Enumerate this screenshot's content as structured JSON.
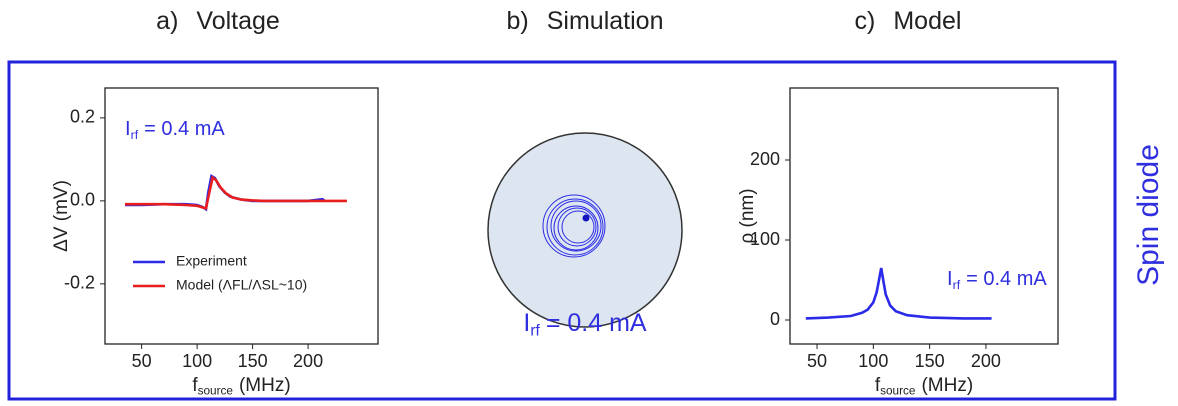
{
  "headings": [
    {
      "label": "a)",
      "title": "Voltage"
    },
    {
      "label": "b)",
      "title": "Simulation"
    },
    {
      "label": "c)",
      "title": "Model"
    }
  ],
  "side_label": "Spin diode",
  "simulation": {
    "annotation": {
      "main": "I",
      "sub": "rf",
      "rest": "= 0.4 mA"
    }
  },
  "chart_data": [
    {
      "type": "line",
      "ylabel": "ΔV (mV)",
      "xlabel": {
        "main": "f",
        "sub": "source",
        "rest": "(MHz)"
      },
      "annotation": {
        "main": "I",
        "sub": "rf",
        "rest": "= 0.4 mA"
      },
      "xlim": [
        17,
        263
      ],
      "ylim": [
        -0.345,
        0.272
      ],
      "xticks": [
        50,
        100,
        150,
        200
      ],
      "yticks": [
        0.2,
        {
          "value": 0,
          "label": "0.0"
        },
        -0.2
      ],
      "legend": "lower left",
      "series": [
        {
          "name": "Experiment",
          "color": "#2a2ae8",
          "x": [
            35,
            50,
            70,
            90,
            100,
            105,
            108,
            110,
            113,
            116,
            120,
            125,
            130,
            140,
            150,
            160,
            180,
            200,
            213,
            215
          ],
          "values": [
            -0.01,
            -0.01,
            -0.008,
            -0.008,
            -0.01,
            -0.015,
            -0.02,
            0.02,
            0.06,
            0.055,
            0.035,
            0.02,
            0.01,
            0.003,
            0,
            0,
            0,
            0,
            0.004,
            0
          ]
        },
        {
          "name": "Model (ΛFL/ΛSL~10)",
          "color": "#e81e1e",
          "x": [
            35,
            50,
            70,
            90,
            100,
            105,
            108,
            111,
            114,
            117,
            121,
            126,
            132,
            140,
            150,
            160,
            180,
            200,
            220,
            235
          ],
          "values": [
            -0.008,
            -0.008,
            -0.008,
            -0.01,
            -0.012,
            -0.016,
            -0.018,
            0.02,
            0.056,
            0.05,
            0.033,
            0.018,
            0.008,
            0.003,
            0.001,
            0,
            0,
            0,
            0,
            0
          ]
        }
      ]
    },
    {
      "type": "line",
      "ylabel": "ρ (nm)",
      "xlabel": {
        "main": "f",
        "sub": "source",
        "rest": "(MHz)"
      },
      "annotation": {
        "main": "I",
        "sub": "rf",
        "rest": "= 0.4 mA"
      },
      "xlim": [
        26,
        264
      ],
      "ylim": [
        -30,
        290
      ],
      "xticks": [
        50,
        100,
        150,
        200
      ],
      "yticks": [
        0,
        100,
        200
      ],
      "series": [
        {
          "color": "#2a2ae8",
          "x": [
            40,
            60,
            80,
            90,
            95,
            100,
            103,
            105,
            107,
            109,
            111,
            115,
            120,
            130,
            150,
            180,
            205
          ],
          "values": [
            2,
            3,
            5,
            9,
            13,
            22,
            35,
            50,
            65,
            48,
            32,
            18,
            11,
            6,
            3,
            2,
            2
          ]
        }
      ]
    }
  ]
}
